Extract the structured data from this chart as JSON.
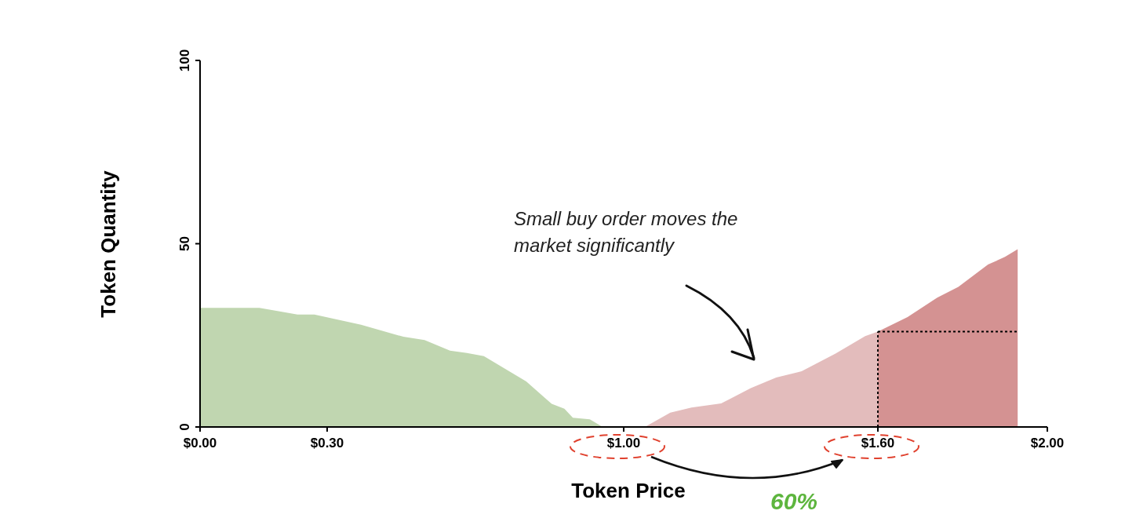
{
  "chart_data": {
    "type": "area",
    "xlabel": "Token Price",
    "ylabel": "Token Quantity",
    "annotations": [
      "Small buy order moves the market significantly",
      "60%"
    ],
    "xlim": [
      0,
      2
    ],
    "xticks": [
      {
        "value": 0,
        "label": "$0.00"
      },
      {
        "value": 0.3,
        "label": "$0.30"
      },
      {
        "value": 1,
        "label": "$1.00"
      },
      {
        "value": 1.6,
        "label": "$1.60"
      },
      {
        "value": 2,
        "label": "$2.00"
      }
    ],
    "ylim": [
      0,
      100
    ],
    "yticks": [
      0,
      50,
      100
    ],
    "series": [
      {
        "color": "#c0d6b0",
        "x": [
          0,
          0.14,
          0.18,
          0.23,
          0.27,
          0.38,
          0.48,
          0.53,
          0.59,
          0.63,
          0.67,
          0.77,
          0.83,
          0.86,
          0.88,
          0.92,
          0.95
        ],
        "values": [
          32.5,
          32.5,
          31.7,
          30.7,
          30.7,
          27.9,
          24.6,
          23.7,
          20.8,
          20.2,
          19.3,
          12.4,
          6.3,
          5,
          2.5,
          2.1,
          0
        ]
      },
      {
        "color": "#e3bcbc",
        "x": [
          1.05,
          1.11,
          1.16,
          1.23,
          1.3,
          1.36,
          1.42,
          1.5,
          1.57,
          1.6
        ],
        "values": [
          0,
          3.9,
          5.3,
          6.4,
          10.6,
          13.5,
          15.2,
          20,
          24.8,
          26
        ]
      },
      {
        "color": "#d49292",
        "x": [
          1.6,
          1.67,
          1.74,
          1.79,
          1.86,
          1.9,
          1.93
        ],
        "values": [
          26,
          30,
          35.3,
          38.2,
          44.3,
          46.4,
          48.5
        ]
      }
    ],
    "ref_lines": [
      {
        "axis": "x",
        "value": 1.6,
        "color": "#000000",
        "line_style": "dotted"
      },
      {
        "axis": "y",
        "value": 26,
        "color": "#000000",
        "line_style": "dotted"
      }
    ]
  }
}
